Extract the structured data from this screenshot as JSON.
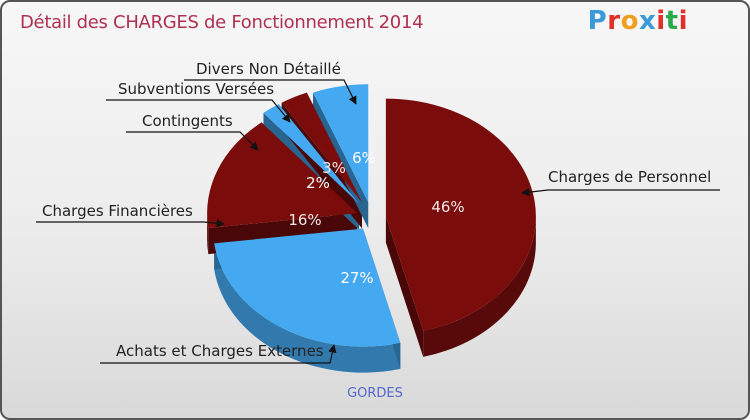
{
  "title": "Détail des CHARGES de Fonctionnement 2014",
  "logo": {
    "text": "Proxiti"
  },
  "footer": "GORDES",
  "colors": {
    "dark": "#7a0c0c",
    "light": "#45a9f2",
    "title": "#b03050",
    "footer": "#5566cc"
  },
  "chart_data": {
    "type": "pie",
    "title": "Détail des CHARGES de Fonctionnement 2014",
    "slices": [
      {
        "label": "Charges de Personnel",
        "value": 46,
        "pct_label": "46%",
        "color": "#7a0c0c"
      },
      {
        "label": "Achats et Charges Externes",
        "value": 27,
        "pct_label": "27%",
        "color": "#45a9f2"
      },
      {
        "label": "Charges Financières",
        "value": 16,
        "pct_label": "16%",
        "color": "#7a0c0c"
      },
      {
        "label": "Contingents",
        "value": 2,
        "pct_label": "2%",
        "color": "#45a9f2"
      },
      {
        "label": "Subventions Versées",
        "value": 3,
        "pct_label": "3%",
        "color": "#7a0c0c"
      },
      {
        "label": "Divers Non Détaillé",
        "value": 6,
        "pct_label": "6%",
        "color": "#45a9f2"
      }
    ]
  }
}
